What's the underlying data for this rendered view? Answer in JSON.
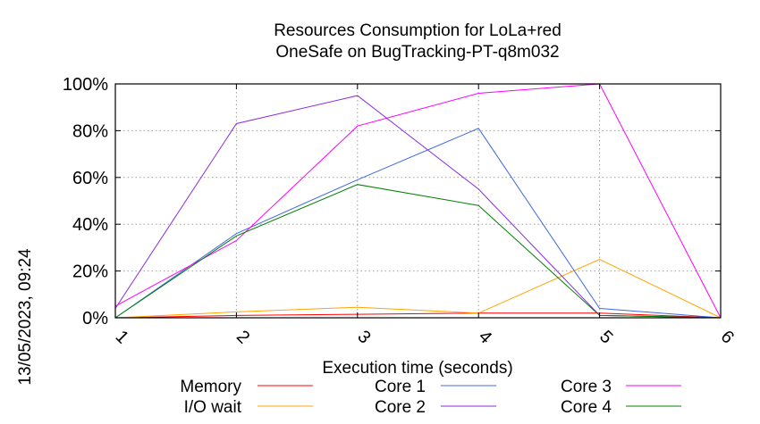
{
  "chart_data": {
    "type": "line",
    "title": [
      "Resources Consumption for LoLa+red",
      "OneSafe on BugTracking-PT-q8m032"
    ],
    "xlabel": "Execution time (seconds)",
    "ylabel": "",
    "side_label": "13/05/2023, 09:24",
    "xlim": [
      1,
      6
    ],
    "ylim": [
      0,
      100
    ],
    "x_ticks": [
      "1",
      "2",
      "3",
      "4",
      "5",
      "6"
    ],
    "y_ticks": [
      "0%",
      "20%",
      "40%",
      "60%",
      "80%",
      "100%"
    ],
    "grid": true,
    "legend_position": "bottom",
    "series": [
      {
        "name": "Memory",
        "color": "#ff0000",
        "x": [
          1,
          2,
          3,
          4,
          5,
          6
        ],
        "y": [
          0,
          1,
          1.5,
          2,
          2,
          0
        ]
      },
      {
        "name": "I/O wait",
        "color": "#ffa500",
        "x": [
          1,
          2,
          3,
          4,
          5,
          6
        ],
        "y": [
          0,
          2.5,
          4.5,
          2,
          25,
          0
        ]
      },
      {
        "name": "Core 1",
        "color": "#4169e1",
        "x": [
          1,
          2,
          3,
          4,
          5,
          6
        ],
        "y": [
          0,
          36,
          59,
          81,
          4,
          0
        ]
      },
      {
        "name": "Core 2",
        "color": "#8a2be2",
        "x": [
          1,
          2,
          3,
          4,
          5,
          6
        ],
        "y": [
          4,
          83,
          95,
          55,
          1,
          0
        ]
      },
      {
        "name": "Core 3",
        "color": "#ff00ff",
        "x": [
          1,
          2,
          3,
          4,
          5,
          6
        ],
        "y": [
          5,
          33,
          82,
          96,
          100,
          0
        ]
      },
      {
        "name": "Core 4",
        "color": "#008000",
        "x": [
          1,
          2,
          3,
          4,
          5,
          6
        ],
        "y": [
          0,
          35,
          57,
          48,
          1,
          0
        ]
      }
    ]
  }
}
